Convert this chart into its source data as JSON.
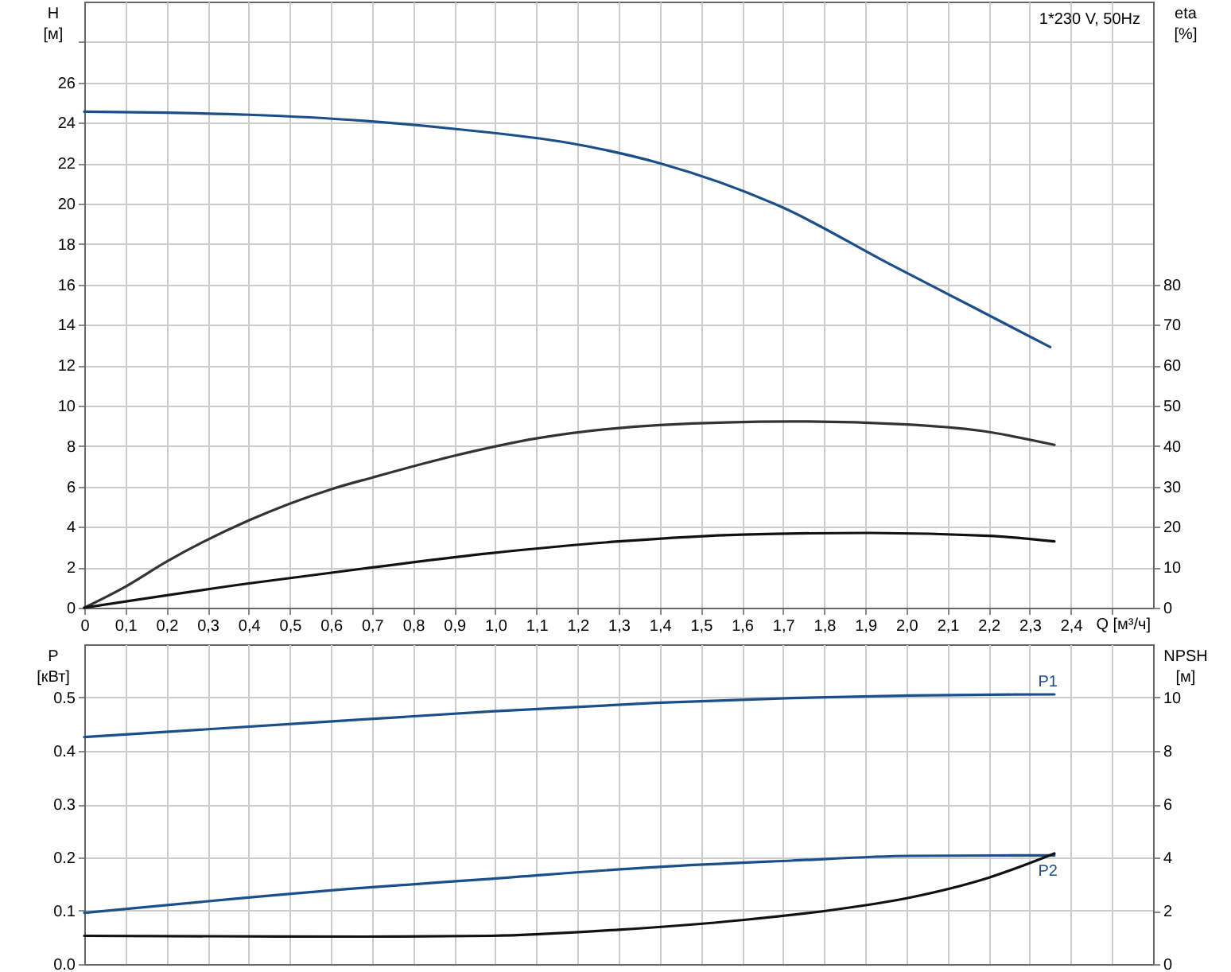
{
  "chart_data": [
    {
      "type": "line",
      "xlabel": "Q [м³/ч]",
      "ylabel": "H [м]",
      "y2label": "eta [%]",
      "annotations": [
        "1*230 V, 50Hz"
      ],
      "xlim": [
        0,
        2.6
      ],
      "xticks": [
        0,
        {
          "value": 0.1,
          "label": "0,1"
        },
        {
          "value": 0.2,
          "label": "0,2"
        },
        {
          "value": 0.3,
          "label": "0,3"
        },
        {
          "value": 0.4,
          "label": "0,4"
        },
        {
          "value": 0.5,
          "label": "0,5"
        },
        {
          "value": 0.6,
          "label": "0,6"
        },
        {
          "value": 0.7,
          "label": "0,7"
        },
        {
          "value": 0.8,
          "label": "0,8"
        },
        {
          "value": 0.9,
          "label": "0,9"
        },
        {
          "value": 1.0,
          "label": "1,0"
        },
        {
          "value": 1.1,
          "label": "1,1"
        },
        {
          "value": 1.2,
          "label": "1,2"
        },
        {
          "value": 1.3,
          "label": "1,3"
        },
        {
          "value": 1.4,
          "label": "1,4"
        },
        {
          "value": 1.5,
          "label": "1,5"
        },
        {
          "value": 1.6,
          "label": "1,6"
        },
        {
          "value": 1.7,
          "label": "1,7"
        },
        {
          "value": 1.8,
          "label": "1,8"
        },
        {
          "value": 1.9,
          "label": "1,9"
        },
        {
          "value": 2.0,
          "label": "2,0"
        },
        {
          "value": 2.1,
          "label": "2,1"
        },
        {
          "value": 2.2,
          "label": "2,2"
        },
        {
          "value": 2.3,
          "label": "2,3"
        },
        {
          "value": 2.4,
          "label": "2,4"
        },
        {
          "value": 2.5,
          "label": null
        }
      ],
      "ylim": [
        0,
        30
      ],
      "yticks": [
        0,
        2,
        4,
        6,
        8,
        10,
        12,
        14,
        16,
        18,
        20,
        22,
        24,
        26,
        {
          "value": 28,
          "label": null
        }
      ],
      "y2lim": [
        0,
        150
      ],
      "y2ticks": [
        0,
        10,
        20,
        30,
        40,
        50,
        60,
        70,
        80
      ],
      "grid": true,
      "series": [
        {
          "color": "#1b4f8a",
          "x": [
            0,
            0.2,
            0.4,
            0.68,
            0.9,
            1.18,
            1.4,
            1.7,
            1.96,
            2.16,
            2.35
          ],
          "values": [
            24.55,
            24.5,
            24.4,
            24.1,
            23.7,
            23.0,
            22.0,
            19.8,
            17.0,
            14.9,
            12.9
          ]
        },
        {
          "color": "#333333",
          "axis": "y2",
          "x": [
            0,
            0.1,
            0.2,
            0.4,
            0.6,
            0.7,
            0.9,
            1.1,
            1.4,
            1.72,
            1.99,
            2.18,
            2.36
          ],
          "values": [
            0,
            5.2,
            11.4,
            21.6,
            29.3,
            32.2,
            37.6,
            41.9,
            45.2,
            46.1,
            45.4,
            43.8,
            40.3
          ]
        },
        {
          "color": "#111111",
          "axis": "y2",
          "x": [
            0,
            0.4,
            0.68,
            0.99,
            1.3,
            1.6,
            1.91,
            2.2,
            2.36
          ],
          "values": [
            0,
            6.0,
            9.7,
            13.5,
            16.4,
            18.1,
            18.5,
            17.8,
            16.4
          ]
        }
      ]
    },
    {
      "type": "line",
      "ylabel": "P [кВт]",
      "y2label": "NPSH [м]",
      "tick_labels": "y",
      "xlim": [
        0,
        2.6
      ],
      "xticks": [
        0,
        0.1,
        0.2,
        0.3,
        0.4,
        0.5,
        0.6,
        0.7,
        0.8,
        0.9,
        1.0,
        1.1,
        1.2,
        1.3,
        1.4,
        1.5,
        1.6,
        1.7,
        1.8,
        1.9,
        2.0,
        2.1,
        2.2,
        2.3,
        2.4,
        2.5
      ],
      "ylim": [
        0,
        0.6
      ],
      "yticks": [
        {
          "value": 0,
          "label": "0.0"
        },
        0.1,
        0.2,
        0.3,
        0.4,
        0.5
      ],
      "y2lim": [
        0,
        12
      ],
      "y2ticks": [
        0,
        2,
        4,
        6,
        8,
        10
      ],
      "grid": true,
      "series": [
        {
          "name": "P1",
          "color": "#1b4f8a",
          "x": [
            0,
            0.68,
            0.99,
            1.39,
            1.72,
            2.01,
            2.36
          ],
          "values": [
            0.426,
            0.459,
            0.474,
            0.49,
            0.499,
            0.504,
            0.506
          ]
        },
        {
          "name": "P2",
          "color": "#1b4f8a",
          "x": [
            0,
            0.68,
            0.99,
            1.39,
            1.72,
            2.01,
            2.36
          ],
          "values": [
            0.096,
            0.143,
            0.16,
            0.182,
            0.194,
            0.203,
            0.204
          ]
        },
        {
          "color": "#111111",
          "axis": "y2",
          "x": [
            0,
            0.68,
            0.99,
            1.3,
            1.6,
            1.82,
            2.01,
            2.2,
            2.36
          ],
          "values": [
            1.06,
            1.03,
            1.06,
            1.29,
            1.65,
            2.03,
            2.5,
            3.24,
            4.15
          ]
        }
      ]
    }
  ]
}
